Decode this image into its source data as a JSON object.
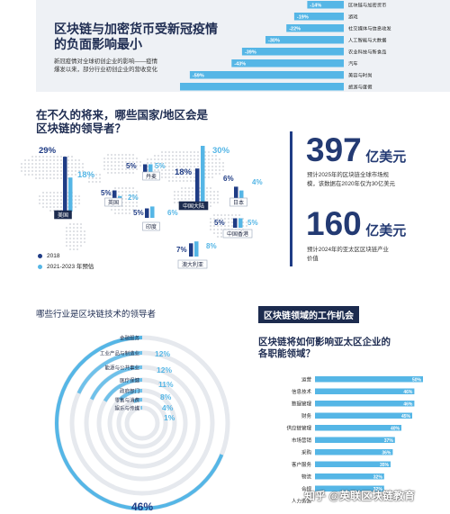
{
  "section1": {
    "title_line1": "区块链与加密货币受新冠疫情",
    "title_line2": "的负面影响最小",
    "desc_line1": "新冠疫情对全球初创企业的影响——疫情",
    "desc_line2": "爆发以来，部分行业初创企业的营收变化"
  },
  "section2": {
    "title_line1": "在不久的将来，哪些国家/地区会是",
    "title_line2": "区块链的领导者？",
    "legend_2018": "2018",
    "legend_forecast": "2021-2023 年预估"
  },
  "stats": {
    "stat1_number": "397",
    "stat1_unit": "亿美元",
    "stat1_desc_line1": "预计2025年的区块链全球市场规",
    "stat1_desc_line2": "模，该数据在2020年仅为30亿美元",
    "stat2_number": "160",
    "stat2_unit": "亿美元",
    "stat2_desc_line1": "预计2024年的亚太区区块链产业",
    "stat2_desc_line2": "价值"
  },
  "section3": {
    "title": "哪些行业是区块链技术的领导者"
  },
  "section4": {
    "pill": "区块链领域的工作机会",
    "title_line1": "区块链将如何影响亚太区企业的",
    "title_line2": "各职能领域？"
  },
  "watermark": "知乎 @英联区块链教育",
  "colors": {
    "navy": "#1f3c85",
    "light": "#55b6e6",
    "dark": "#1f2d52"
  },
  "chart_data": [
    {
      "type": "bar",
      "orientation": "horizontal",
      "categories": [
        "区块链与加密货币",
        "游戏",
        "社交媒体与信息收发",
        "人工智能与大数据",
        "农业科技与新食品",
        "汽车",
        "美容与时尚",
        "旅游与度假"
      ],
      "values": [
        -14,
        -19,
        -22,
        -30,
        -39,
        -43,
        -59,
        -70
      ],
      "labels": [
        "-14%",
        "-19%",
        "-22%",
        "-30%",
        "-39%",
        "-43%",
        "-59%",
        "-70%"
      ]
    },
    {
      "type": "bar",
      "categories": [
        "美国",
        "丹麦",
        "英国",
        "印度",
        "中国大陆",
        "日本",
        "中国香港",
        "澳大利亚"
      ],
      "series": [
        {
          "name": "2018",
          "values": [
            29,
            5,
            5,
            5,
            18,
            6,
            5,
            7
          ]
        },
        {
          "name": "2021-2023 年预估",
          "values": [
            18,
            5,
            2,
            6,
            30,
            4,
            5,
            8
          ]
        }
      ],
      "labels_2018": [
        "29%",
        "5%",
        "5%",
        "5%",
        "18%",
        "6%",
        "5%",
        "7%"
      ],
      "labels_forecast": [
        "18%",
        "5%",
        "2%",
        "6%",
        "30%",
        "4%",
        "5%",
        "8%"
      ]
    },
    {
      "type": "radial_bar",
      "categories": [
        "金融服务",
        "工业产品与制造业",
        "能源与公共事业",
        "医疗保健",
        "政府部门",
        "零售与消费",
        "娱乐与传媒"
      ],
      "values": [
        46,
        12,
        12,
        11,
        8,
        4,
        1
      ],
      "labels": [
        "46%",
        "12%",
        "12%",
        "11%",
        "8%",
        "4%",
        "1%"
      ]
    },
    {
      "type": "bar",
      "orientation": "horizontal",
      "categories": [
        "运营",
        "信息技术",
        "数据管理",
        "财务",
        "供应链管理",
        "市场营销",
        "采购",
        "客户服务",
        "物流",
        "合规",
        "人力资源"
      ],
      "values": [
        50,
        46,
        46,
        45,
        40,
        37,
        36,
        35,
        32,
        32,
        null
      ],
      "labels": [
        "50%",
        "46%",
        "46%",
        "45%",
        "40%",
        "37%",
        "36%",
        "35%",
        "32%",
        "32%",
        ""
      ]
    }
  ]
}
